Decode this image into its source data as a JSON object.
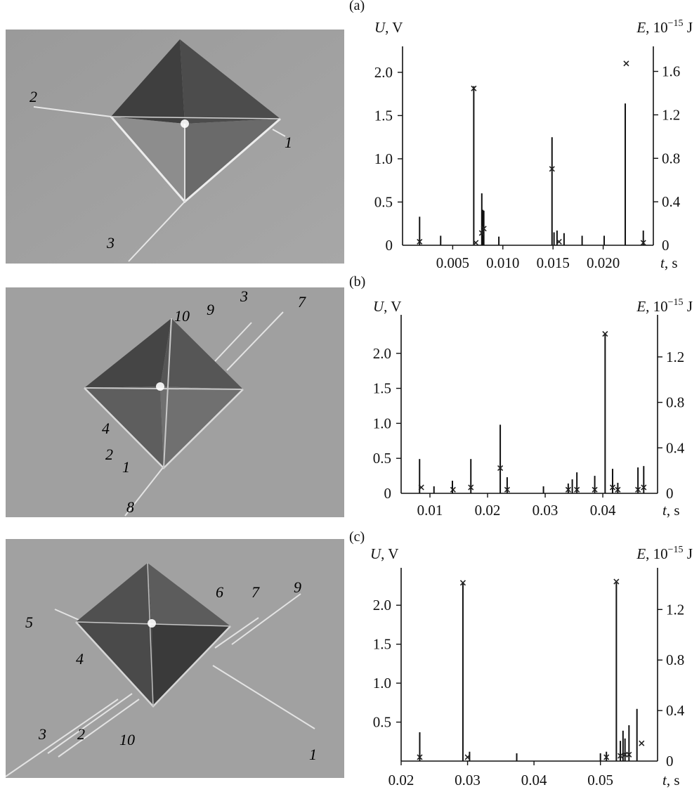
{
  "panel_letters": [
    "(a)",
    "(b)",
    "(c)"
  ],
  "photos": [
    {
      "labels": [
        "2",
        "1",
        "3"
      ]
    },
    {
      "labels": [
        "10",
        "9",
        "3",
        "7",
        "4",
        "2",
        "1",
        "8"
      ]
    },
    {
      "labels": [
        "6",
        "7",
        "9",
        "5",
        "4",
        "3",
        "2",
        "10",
        "1"
      ]
    }
  ],
  "axis_text": {
    "u_var": "U",
    "u_unit": ", V",
    "e_var": "E",
    "e_unit_pre": ", 10",
    "e_exp": "−15",
    "e_unit_post": " J",
    "t_var": "t",
    "t_unit": ", s"
  },
  "chart_data": [
    {
      "type": "bar",
      "panel": "(a)",
      "xlabel": "t, s",
      "ylabel_left": "U, V",
      "ylabel_right": "E, 10−15 J",
      "xlim": [
        0,
        0.025
      ],
      "ylim_left": [
        0,
        2.3
      ],
      "ylim_right": [
        0,
        1.83
      ],
      "x_ticks": [
        0.005,
        0.01,
        0.015,
        0.02
      ],
      "x_tick_labels": [
        "0.005",
        "0.010",
        "0.015",
        "0.020"
      ],
      "y_left_ticks": [
        0,
        0.5,
        1.0,
        1.5,
        2.0
      ],
      "y_left_tick_labels": [
        "0",
        "0.5",
        "1.0",
        "1.5",
        "2.0"
      ],
      "y_right_ticks": [
        0,
        0.4,
        0.8,
        1.2,
        1.6
      ],
      "y_right_tick_labels": [
        "0",
        "0.4",
        "0.8",
        "1.2",
        "1.6"
      ],
      "series": [
        {
          "type": "impulse",
          "x": [
            0.0017,
            0.0038,
            0.0071,
            0.0079,
            0.008,
            0.0081,
            0.0096,
            0.0149,
            0.0151,
            0.0154,
            0.0161,
            0.0179,
            0.0201,
            0.0222,
            0.024
          ],
          "values": [
            0.33,
            0.11,
            1.84,
            0.6,
            0.41,
            0.4,
            0.1,
            1.25,
            0.15,
            0.17,
            0.14,
            0.11,
            0.11,
            1.64,
            0.17
          ]
        },
        {
          "type": "scatter",
          "marker": "x",
          "x": [
            0.0017,
            0.0071,
            0.0073,
            0.0079,
            0.0081,
            0.0149,
            0.0156,
            0.0223,
            0.024
          ],
          "values": [
            0.02,
            1.43,
            0.01,
            0.1,
            0.14,
            0.69,
            0.02,
            1.66,
            0.01
          ]
        }
      ]
    },
    {
      "type": "bar",
      "panel": "(b)",
      "xlabel": "t, s",
      "ylabel_left": "U, V",
      "ylabel_right": "E, 10−15 J",
      "xlim": [
        0.005,
        0.0495
      ],
      "ylim_left": [
        0,
        2.55
      ],
      "ylim_right": [
        0,
        1.57
      ],
      "x_ticks": [
        0.01,
        0.02,
        0.03,
        0.04
      ],
      "x_tick_labels": [
        "0.01",
        "0.02",
        "0.03",
        "0.04"
      ],
      "y_left_ticks": [
        0,
        0.5,
        1.0,
        1.5,
        2.0
      ],
      "y_left_tick_labels": [
        "0",
        "0.5",
        "1.0",
        "1.5",
        "2.0"
      ],
      "y_right_ticks": [
        0,
        0.4,
        0.8,
        1.2
      ],
      "y_right_tick_labels": [
        "0",
        "0.4",
        "0.8",
        "1.2"
      ],
      "series": [
        {
          "type": "impulse",
          "x": [
            0.0082,
            0.0107,
            0.0139,
            0.0171,
            0.0222,
            0.0234,
            0.0297,
            0.034,
            0.0347,
            0.0355,
            0.0386,
            0.0404,
            0.0417,
            0.0426,
            0.0461,
            0.0471
          ],
          "values": [
            0.49,
            0.1,
            0.18,
            0.49,
            0.98,
            0.23,
            0.1,
            0.14,
            0.2,
            0.3,
            0.25,
            2.28,
            0.35,
            0.15,
            0.37,
            0.39
          ]
        },
        {
          "type": "scatter",
          "marker": "x",
          "x": [
            0.0085,
            0.014,
            0.0171,
            0.0222,
            0.0234,
            0.034,
            0.0355,
            0.0386,
            0.0404,
            0.0417,
            0.0426,
            0.0461,
            0.0471
          ],
          "values": [
            0.04,
            0.02,
            0.04,
            0.21,
            0.02,
            0.02,
            0.02,
            0.02,
            1.39,
            0.04,
            0.02,
            0.02,
            0.04
          ]
        }
      ]
    },
    {
      "type": "bar",
      "panel": "(c)",
      "xlabel": "t, s",
      "ylabel_left": "U, V",
      "ylabel_right": "E, 10−15 J",
      "xlim": [
        0.02,
        0.0586
      ],
      "ylim_left": [
        0,
        2.48
      ],
      "ylim_right": [
        0,
        1.53
      ],
      "x_ticks": [
        0.02,
        0.03,
        0.04,
        0.05
      ],
      "x_tick_labels": [
        "0.02",
        "0.03",
        "0.04",
        "0.05"
      ],
      "y_left_ticks": [
        0.5,
        1.0,
        1.5,
        2.0
      ],
      "y_left_tick_labels": [
        "0.5",
        "1.0",
        "1.5",
        "2.0"
      ],
      "y_right_ticks": [
        0,
        0.4,
        0.8,
        1.2
      ],
      "y_right_tick_labels": [
        "0",
        "0.4",
        "0.8",
        "1.2"
      ],
      "series": [
        {
          "type": "impulse",
          "x": [
            0.0228,
            0.0293,
            0.0303,
            0.0374,
            0.05,
            0.0509,
            0.0524,
            0.053,
            0.0534,
            0.0537,
            0.0543,
            0.0555
          ],
          "values": [
            0.37,
            2.28,
            0.12,
            0.1,
            0.1,
            0.12,
            2.29,
            0.26,
            0.39,
            0.29,
            0.46,
            0.67
          ]
        },
        {
          "type": "scatter",
          "marker": "x",
          "x": [
            0.0228,
            0.0293,
            0.03,
            0.0509,
            0.0524,
            0.053,
            0.0537,
            0.0543,
            0.0562
          ],
          "values": [
            0.02,
            1.4,
            0.02,
            0.02,
            1.41,
            0.03,
            0.04,
            0.04,
            0.13
          ]
        }
      ]
    }
  ]
}
